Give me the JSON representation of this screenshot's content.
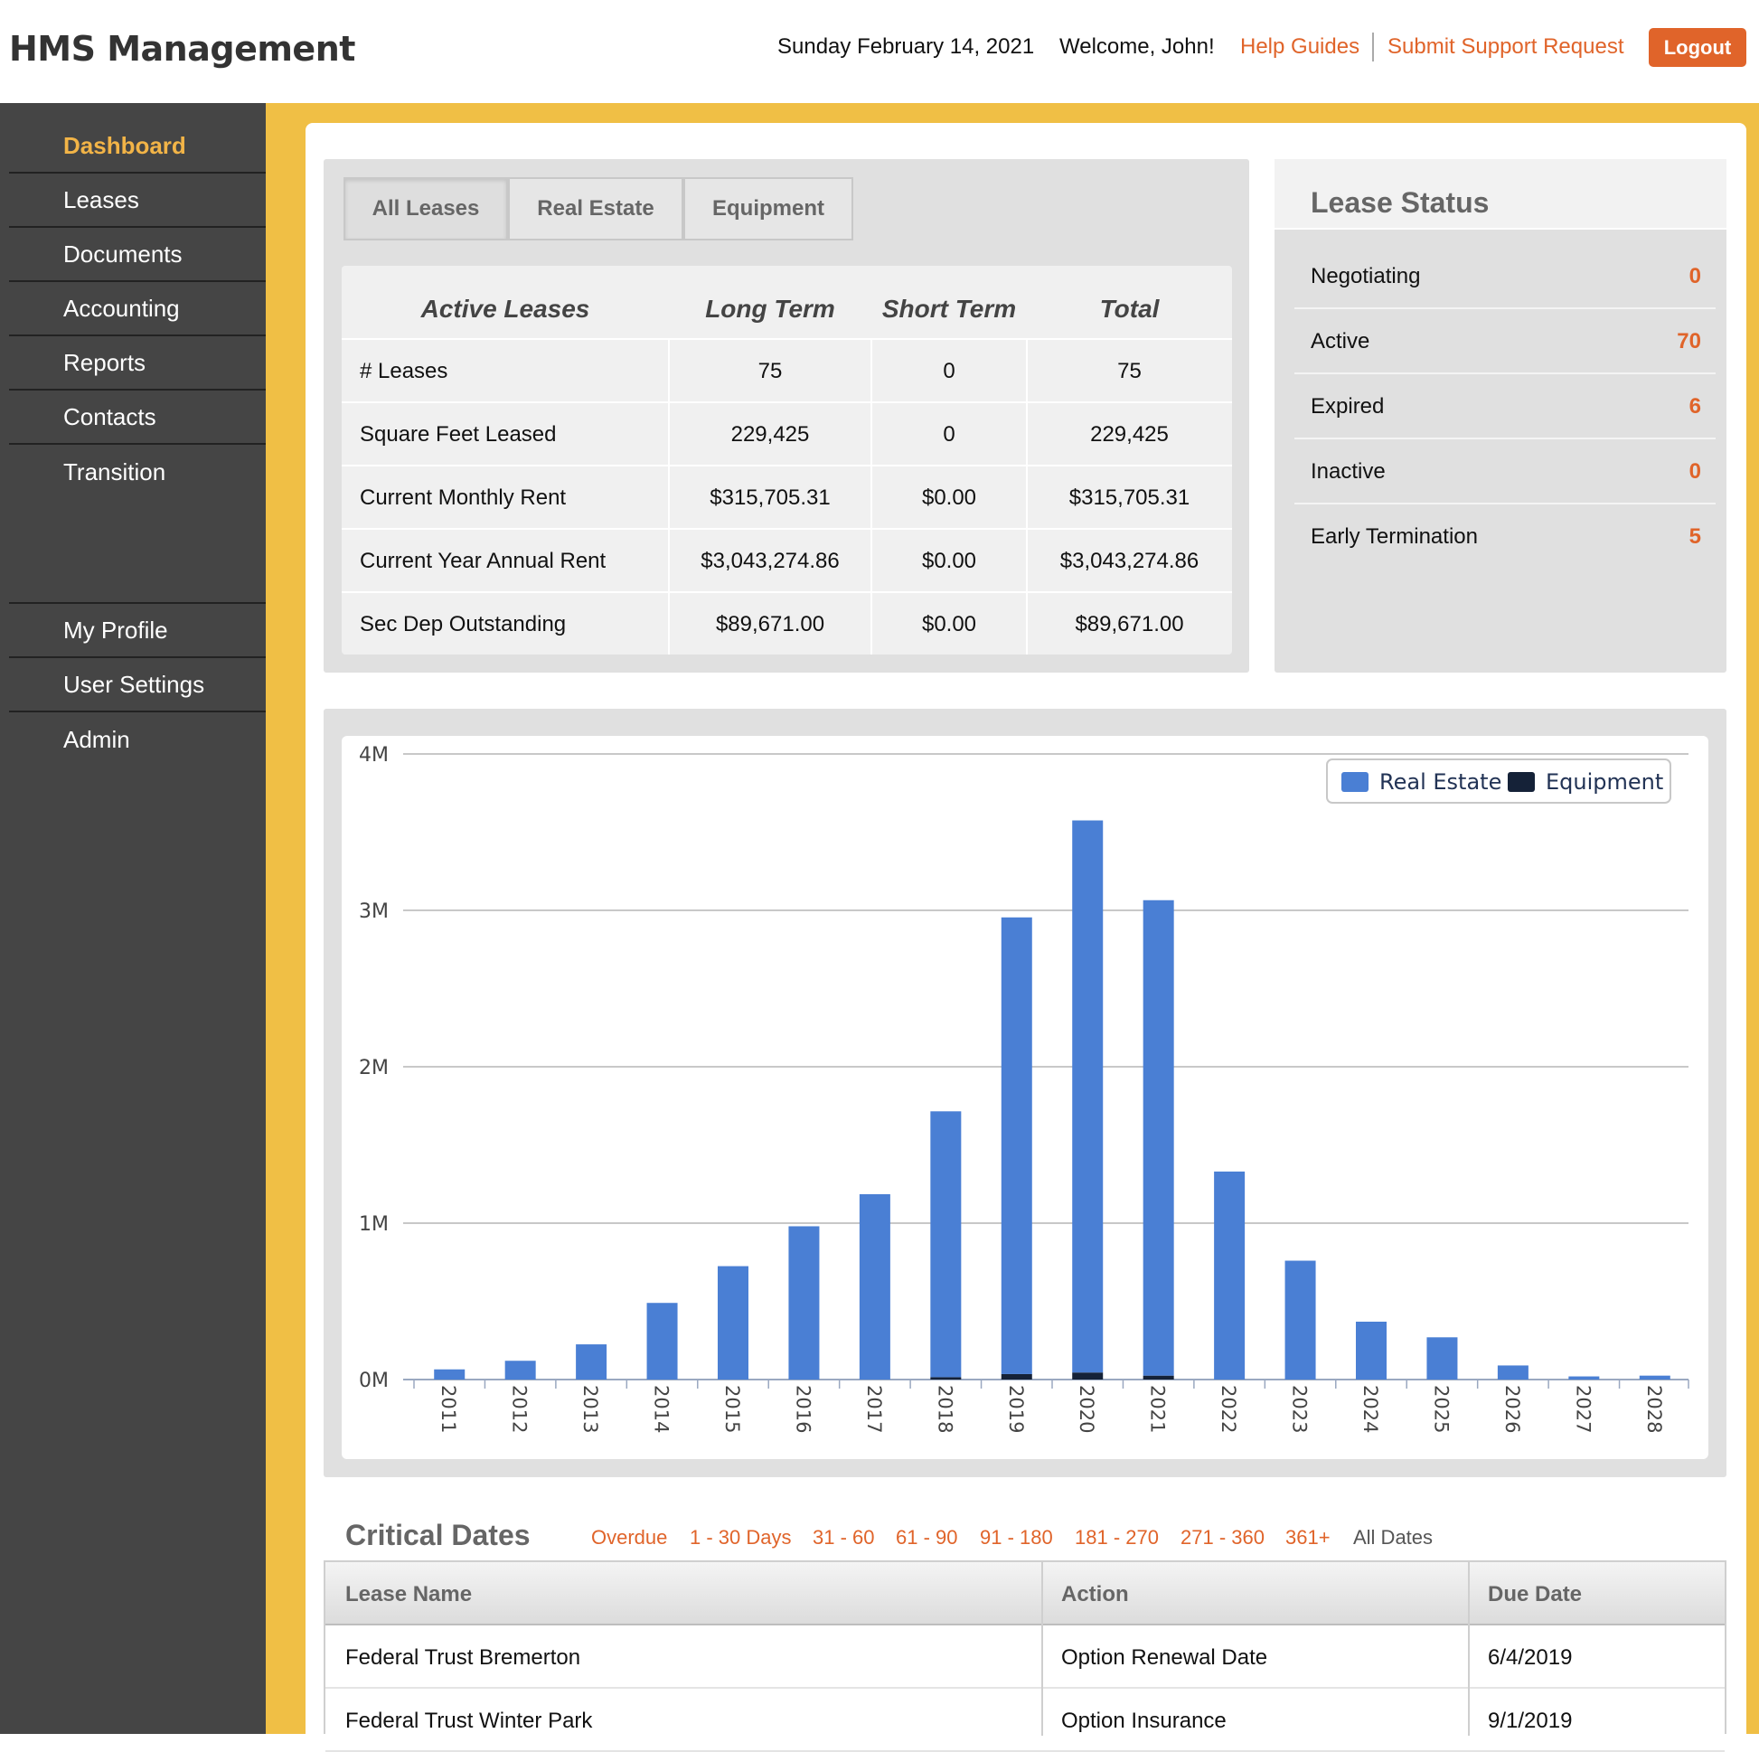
{
  "header": {
    "logo": "HMS Management",
    "date": "Sunday February 14, 2021",
    "welcome": "Welcome, John!",
    "help": "Help Guides",
    "support": "Submit Support Request",
    "logout": "Logout"
  },
  "sidebar": {
    "items": [
      "Dashboard",
      "Leases",
      "Documents",
      "Accounting",
      "Reports",
      "Contacts",
      "Transition"
    ],
    "items2": [
      "My Profile",
      "User Settings",
      "Admin"
    ]
  },
  "tabs": [
    "All Leases",
    "Real Estate",
    "Equipment"
  ],
  "leases_table": {
    "headers": [
      "Active Leases",
      "Long Term",
      "Short Term",
      "Total"
    ],
    "rows": [
      [
        "# Leases",
        "75",
        "0",
        "75"
      ],
      [
        "Square Feet Leased",
        "229,425",
        "0",
        "229,425"
      ],
      [
        "Current Monthly Rent",
        "$315,705.31",
        "$0.00",
        "$315,705.31"
      ],
      [
        "Current Year Annual Rent",
        "$3,043,274.86",
        "$0.00",
        "$3,043,274.86"
      ],
      [
        "Sec Dep Outstanding",
        "$89,671.00",
        "$0.00",
        "$89,671.00"
      ]
    ]
  },
  "lease_status": {
    "title": "Lease Status",
    "items": [
      {
        "label": "Negotiating",
        "value": "0"
      },
      {
        "label": "Active",
        "value": "70"
      },
      {
        "label": "Expired",
        "value": "6"
      },
      {
        "label": "Inactive",
        "value": "0"
      },
      {
        "label": "Early Termination",
        "value": "5"
      }
    ]
  },
  "chart_data": {
    "type": "bar",
    "stacked": true,
    "categories": [
      "2011",
      "2012",
      "2013",
      "2014",
      "2015",
      "2016",
      "2017",
      "2018",
      "2019",
      "2020",
      "2021",
      "2022",
      "2023",
      "2024",
      "2025",
      "2026",
      "2027",
      "2028"
    ],
    "series": [
      {
        "name": "Real Estate",
        "color": "#4a7fd4",
        "values": [
          0.065,
          0.12,
          0.225,
          0.49,
          0.725,
          0.98,
          1.185,
          1.7,
          2.92,
          3.53,
          3.04,
          1.33,
          0.76,
          0.37,
          0.27,
          0.09,
          0.02,
          0.025
        ]
      },
      {
        "name": "Equipment",
        "color": "#152238",
        "values": [
          0,
          0,
          0,
          0,
          0,
          0,
          0,
          0.015,
          0.035,
          0.045,
          0.025,
          0,
          0,
          0,
          0,
          0,
          0,
          0
        ]
      }
    ],
    "yticks": [
      "0M",
      "1M",
      "2M",
      "3M",
      "4M"
    ],
    "ylim": [
      0,
      4
    ],
    "legend": "top-right"
  },
  "critical_dates": {
    "title": "Critical Dates",
    "filters": [
      "Overdue",
      "1 - 30 Days",
      "31 - 60",
      "61 - 90",
      "91 - 180",
      "181 - 270",
      "271 - 360",
      "361+",
      "All Dates"
    ],
    "headers": [
      "Lease Name",
      "Action",
      "Due Date"
    ],
    "rows": [
      [
        "Federal Trust Bremerton",
        "Option Renewal Date",
        "6/4/2019"
      ],
      [
        "Federal Trust Winter Park",
        "Option Insurance",
        "9/1/2019"
      ]
    ]
  }
}
